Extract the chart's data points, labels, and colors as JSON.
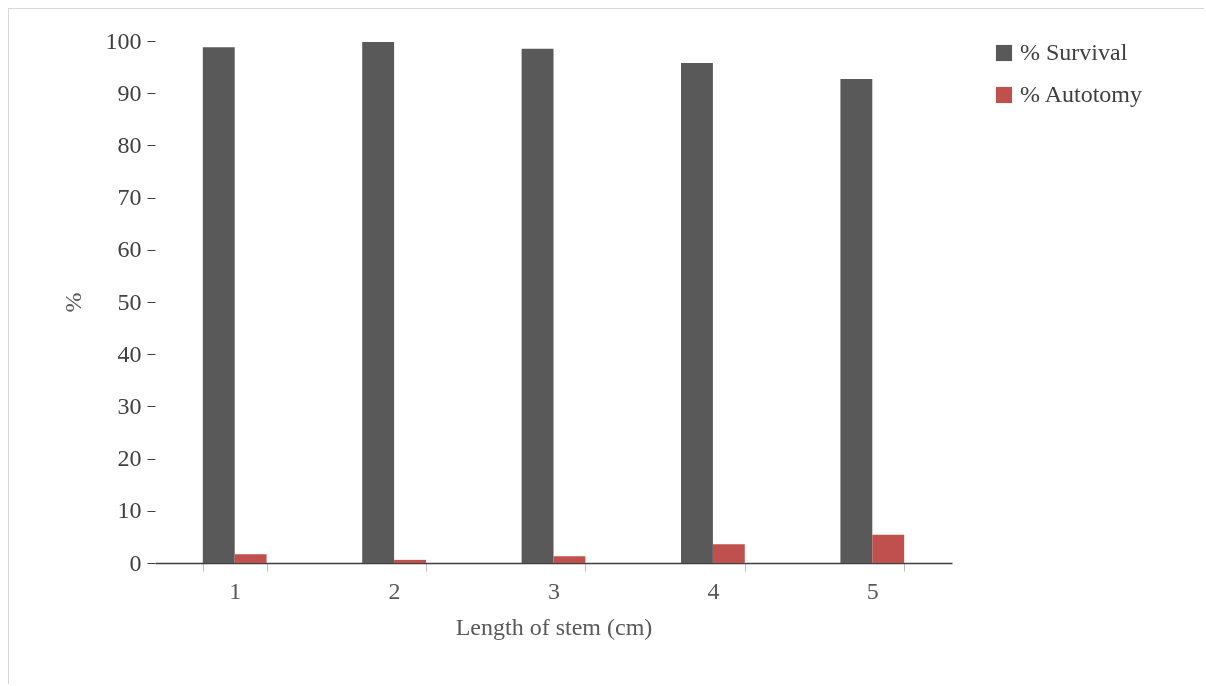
{
  "chart_data": {
    "type": "bar",
    "xlabel": "Length of stem (cm)",
    "ylabel": "%",
    "categories": [
      "1",
      "2",
      "3",
      "4",
      "5"
    ],
    "series": [
      {
        "name": "% Survival",
        "color": "#595959",
        "values": [
          98.8,
          99.8,
          98.5,
          95.8,
          92.7
        ]
      },
      {
        "name": "% Autotomy",
        "color": "#c0504d",
        "values": [
          1.7,
          0.6,
          1.3,
          3.6,
          5.4
        ]
      }
    ],
    "ylim": [
      0,
      100
    ],
    "yticks": [
      0,
      10,
      20,
      30,
      40,
      50,
      60,
      70,
      80,
      90,
      100
    ],
    "grid": false,
    "legend": "right"
  }
}
